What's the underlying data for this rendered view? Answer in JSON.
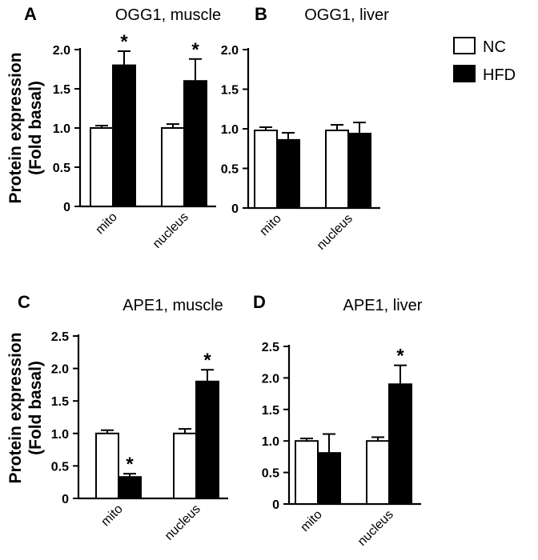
{
  "figure": {
    "ylabel_line1": "Protein expression",
    "ylabel_line2": "(Fold basal)"
  },
  "legend": {
    "items": [
      {
        "label": "NC",
        "fill": "#ffffff"
      },
      {
        "label": "HFD",
        "fill": "#000000"
      }
    ]
  },
  "chart_data": [
    {
      "type": "bar",
      "panel": "A",
      "title": "OGG1, muscle",
      "categories": [
        "mito",
        "nucleus"
      ],
      "series": [
        {
          "name": "NC",
          "values": [
            1.0,
            1.0
          ],
          "errors": [
            0.03,
            0.05
          ],
          "significant": [
            false,
            false
          ]
        },
        {
          "name": "HFD",
          "values": [
            1.8,
            1.6
          ],
          "errors": [
            0.18,
            0.28
          ],
          "significant": [
            true,
            true
          ]
        }
      ],
      "ylim": [
        0,
        2.0
      ],
      "yticks": [
        "0",
        "0.5",
        "1.0",
        "1.5",
        "2.0"
      ]
    },
    {
      "type": "bar",
      "panel": "B",
      "title": "OGG1, liver",
      "categories": [
        "mito",
        "nucleus"
      ],
      "series": [
        {
          "name": "NC",
          "values": [
            0.98,
            0.98
          ],
          "errors": [
            0.04,
            0.07
          ],
          "significant": [
            false,
            false
          ]
        },
        {
          "name": "HFD",
          "values": [
            0.86,
            0.94
          ],
          "errors": [
            0.09,
            0.14
          ],
          "significant": [
            false,
            false
          ]
        }
      ],
      "ylim": [
        0,
        2.0
      ],
      "yticks": [
        "0",
        "0.5",
        "1.0",
        "1.5",
        "2.0"
      ]
    },
    {
      "type": "bar",
      "panel": "C",
      "title": "APE1, muscle",
      "categories": [
        "mito",
        "nucleus"
      ],
      "series": [
        {
          "name": "NC",
          "values": [
            1.0,
            1.0
          ],
          "errors": [
            0.05,
            0.07
          ],
          "significant": [
            false,
            false
          ]
        },
        {
          "name": "HFD",
          "values": [
            0.33,
            1.8
          ],
          "errors": [
            0.05,
            0.18
          ],
          "significant": [
            true,
            true
          ]
        }
      ],
      "ylim": [
        0,
        2.5
      ],
      "yticks": [
        "0",
        "0.5",
        "1.0",
        "1.5",
        "2.0",
        "2.5"
      ]
    },
    {
      "type": "bar",
      "panel": "D",
      "title": "APE1, liver",
      "categories": [
        "mito",
        "nucleus"
      ],
      "series": [
        {
          "name": "NC",
          "values": [
            1.0,
            1.0
          ],
          "errors": [
            0.04,
            0.06
          ],
          "significant": [
            false,
            false
          ]
        },
        {
          "name": "HFD",
          "values": [
            0.81,
            1.9
          ],
          "errors": [
            0.3,
            0.3
          ],
          "significant": [
            false,
            true
          ]
        }
      ],
      "ylim": [
        0,
        2.5
      ],
      "yticks": [
        "0",
        "0.5",
        "1.0",
        "1.5",
        "2.0",
        "2.5"
      ]
    }
  ]
}
